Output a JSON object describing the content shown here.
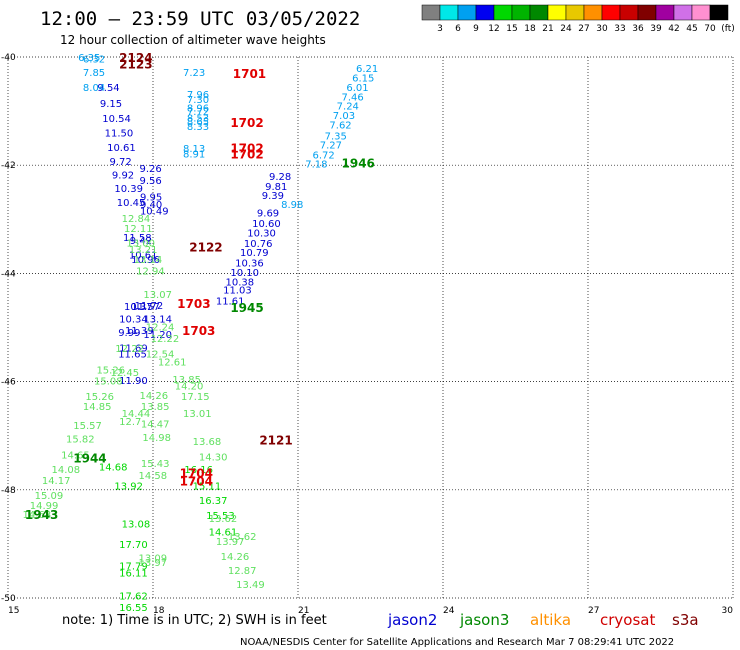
{
  "header": {
    "title": "12:00 – 23:59 UTC 03/05/2022",
    "subtitle": "12 hour collection of altimeter wave heights"
  },
  "colorbar": {
    "colors": [
      "#808080",
      "#00e8e8",
      "#00a0f0",
      "#0000f0",
      "#00d800",
      "#00b400",
      "#008800",
      "#ffff00",
      "#e8c800",
      "#ff9000",
      "#ff0000",
      "#c80000",
      "#800000",
      "#a000a0",
      "#d070e8",
      "#ff90d0",
      "#000000"
    ],
    "labels": [
      "3",
      "6",
      "9",
      "12",
      "15",
      "18",
      "21",
      "24",
      "27",
      "30",
      "33",
      "36",
      "39",
      "42",
      "45",
      "70",
      "(ft)"
    ]
  },
  "footer": {
    "note": "note: 1) Time is in UTC; 2) SWH is in feet",
    "credit": "NOAA/NESDIS Center for Satellite Applications and Research   Mar  7 08:29:41 UTC 2022",
    "satellites": [
      {
        "name": "jason2",
        "color": "#0000d0"
      },
      {
        "name": "jason3",
        "color": "#008800"
      },
      {
        "name": "altika",
        "color": "#ff9000"
      },
      {
        "name": "cryosat",
        "color": "#d00000"
      },
      {
        "name": "s3a",
        "color": "#800000"
      }
    ]
  },
  "chart_data": {
    "type": "scatter",
    "xlim": [
      15,
      30
    ],
    "ylim": [
      -50,
      -40
    ],
    "xticks": [
      "15",
      "18",
      "21",
      "24",
      "27",
      "30"
    ],
    "yticks": [
      "-40",
      "-42",
      "-44",
      "-46",
      "-48",
      "-50"
    ],
    "grid": true,
    "series": [
      {
        "color": "#0000d0",
        "points": [
          [
            16.85,
            -40.55,
            "9.54"
          ],
          [
            16.9,
            -40.85,
            "9.15"
          ],
          [
            16.95,
            -41.13,
            "10.54"
          ],
          [
            17.0,
            -41.4,
            "11.50"
          ],
          [
            17.05,
            -41.66,
            "10.61"
          ],
          [
            17.1,
            -41.92,
            "9.72"
          ],
          [
            17.15,
            -42.17,
            "9.92"
          ],
          [
            17.2,
            -42.42,
            "10.39"
          ],
          [
            17.25,
            -42.68,
            "10.45"
          ],
          [
            17.72,
            -42.05,
            "9.26"
          ],
          [
            17.72,
            -42.27,
            "9.56"
          ],
          [
            17.73,
            -42.58,
            "9.95"
          ],
          [
            17.73,
            -42.72,
            "9.40"
          ],
          [
            17.73,
            -42.84,
            "10.49"
          ],
          [
            17.38,
            -43.33,
            "11.58"
          ],
          [
            17.52,
            -43.38,
            "9.42"
          ],
          [
            17.5,
            -43.65,
            "10.61"
          ],
          [
            17.55,
            -43.73,
            "10.96"
          ],
          [
            17.4,
            -44.6,
            "10.37"
          ],
          [
            17.55,
            -44.6,
            "11.57"
          ],
          [
            17.62,
            -44.58,
            "11.72"
          ],
          [
            17.3,
            -44.83,
            "10.34"
          ],
          [
            17.8,
            -44.83,
            "13.14"
          ],
          [
            17.28,
            -45.08,
            "9.99"
          ],
          [
            17.42,
            -45.05,
            "11.39"
          ],
          [
            17.8,
            -45.12,
            "11.20"
          ],
          [
            17.3,
            -45.37,
            "11.69"
          ],
          [
            17.28,
            -45.48,
            "11.65"
          ],
          [
            17.3,
            -45.97,
            "11.90"
          ],
          [
            20.4,
            -42.2,
            "9.28"
          ],
          [
            20.32,
            -42.38,
            "9.81"
          ],
          [
            20.25,
            -42.55,
            "9.39"
          ],
          [
            20.15,
            -42.87,
            "9.69"
          ],
          [
            20.05,
            -43.07,
            "10.60"
          ],
          [
            19.95,
            -43.24,
            "10.30"
          ],
          [
            19.88,
            -43.44,
            "10.76"
          ],
          [
            19.8,
            -43.6,
            "10.79"
          ],
          [
            19.7,
            -43.8,
            "10.36"
          ],
          [
            19.6,
            -43.97,
            "10.10"
          ],
          [
            19.5,
            -44.15,
            "10.38"
          ],
          [
            19.45,
            -44.3,
            "11.03"
          ],
          [
            19.3,
            -44.5,
            "11.61"
          ]
        ]
      },
      {
        "color": "#00a0f0",
        "points": [
          [
            16.45,
            -40.0,
            "6.35"
          ],
          [
            16.55,
            -40.03,
            "6.32"
          ],
          [
            16.55,
            -40.28,
            "7.85"
          ],
          [
            16.55,
            -40.55,
            "8.04"
          ],
          [
            18.62,
            -40.28,
            "7.23"
          ],
          [
            18.7,
            -40.68,
            "7.96"
          ],
          [
            18.7,
            -40.78,
            "7.30"
          ],
          [
            18.7,
            -40.93,
            "8.96"
          ],
          [
            18.7,
            -41.0,
            "7.72"
          ],
          [
            18.7,
            -41.12,
            "8.53"
          ],
          [
            18.7,
            -41.18,
            "8.65"
          ],
          [
            18.7,
            -41.28,
            "8.33"
          ],
          [
            18.62,
            -41.68,
            "8.13"
          ],
          [
            18.62,
            -41.78,
            "8.91"
          ],
          [
            22.2,
            -40.2,
            "6.21"
          ],
          [
            22.12,
            -40.38,
            "6.15"
          ],
          [
            22.0,
            -40.55,
            "6.01"
          ],
          [
            21.9,
            -40.73,
            "7.46"
          ],
          [
            21.8,
            -40.9,
            "7.24"
          ],
          [
            21.72,
            -41.07,
            "7.03"
          ],
          [
            21.65,
            -41.25,
            "7.62"
          ],
          [
            21.55,
            -41.45,
            "7.35"
          ],
          [
            21.45,
            -41.62,
            "7.27"
          ],
          [
            21.3,
            -41.8,
            "6.72"
          ],
          [
            21.15,
            -41.97,
            "7.18"
          ],
          [
            20.65,
            -42.72,
            "8.98"
          ]
        ]
      },
      {
        "color": "#00d800",
        "points": [
          [
            17.2,
            -47.92,
            "13.92"
          ],
          [
            16.88,
            -47.57,
            "14.68"
          ],
          [
            17.35,
            -48.62,
            "13.08"
          ],
          [
            17.3,
            -49.0,
            "17.70"
          ],
          [
            17.3,
            -49.4,
            "17.79"
          ],
          [
            17.3,
            -49.53,
            "16.11"
          ],
          [
            17.3,
            -49.95,
            "17.62"
          ],
          [
            17.3,
            -50.17,
            "16.55"
          ],
          [
            18.65,
            -47.62,
            "16.16"
          ],
          [
            18.82,
            -47.92,
            "15.11"
          ],
          [
            18.95,
            -48.19,
            "16.37"
          ],
          [
            19.1,
            -48.47,
            "15.53"
          ],
          [
            19.15,
            -48.77,
            "14.61"
          ]
        ]
      },
      {
        "color": "#60e060",
        "points": [
          [
            15.55,
            -48.1,
            "15.09"
          ],
          [
            15.45,
            -48.28,
            "14.99"
          ],
          [
            15.3,
            -48.45,
            "14.68"
          ],
          [
            15.7,
            -47.82,
            "14.17"
          ],
          [
            15.9,
            -47.62,
            "14.08"
          ],
          [
            16.1,
            -47.35,
            "14.65"
          ],
          [
            16.2,
            -47.05,
            "15.82"
          ],
          [
            16.35,
            -46.8,
            "15.57"
          ],
          [
            16.55,
            -46.45,
            "14.85"
          ],
          [
            16.6,
            -46.27,
            "15.26"
          ],
          [
            16.78,
            -45.98,
            "15.08"
          ],
          [
            16.83,
            -45.78,
            "15.26"
          ],
          [
            17.35,
            -46.58,
            "14.44"
          ],
          [
            17.3,
            -46.73,
            "12.7"
          ],
          [
            17.12,
            -45.82,
            "12.45"
          ],
          [
            17.22,
            -45.38,
            "12.22"
          ],
          [
            17.72,
            -46.25,
            "14.26"
          ],
          [
            17.75,
            -46.45,
            "13.85"
          ],
          [
            17.75,
            -46.77,
            "14.47"
          ],
          [
            17.78,
            -47.02,
            "14.98"
          ],
          [
            17.75,
            -47.5,
            "15.43"
          ],
          [
            17.7,
            -47.73,
            "14.58"
          ],
          [
            17.7,
            -49.25,
            "13.09"
          ],
          [
            17.7,
            -49.33,
            "13.97"
          ],
          [
            17.35,
            -42.98,
            "12.84"
          ],
          [
            17.4,
            -43.16,
            "12.11"
          ],
          [
            17.45,
            -43.43,
            "13.00"
          ],
          [
            17.5,
            -43.55,
            "13.21"
          ],
          [
            17.6,
            -43.73,
            "13.14"
          ],
          [
            17.65,
            -43.95,
            "12.94"
          ],
          [
            17.8,
            -44.38,
            "13.07"
          ],
          [
            17.85,
            -44.98,
            "12.24"
          ],
          [
            17.95,
            -45.19,
            "12.22"
          ],
          [
            17.85,
            -45.48,
            "12.54"
          ],
          [
            18.1,
            -45.63,
            "12.61"
          ],
          [
            18.4,
            -45.95,
            "13.85"
          ],
          [
            18.45,
            -46.07,
            "14.20"
          ],
          [
            18.58,
            -46.27,
            "17.15"
          ],
          [
            18.62,
            -46.58,
            "13.01"
          ],
          [
            18.82,
            -47.1,
            "13.68"
          ],
          [
            18.95,
            -47.38,
            "14.30"
          ],
          [
            19.15,
            -48.52,
            "13.62"
          ],
          [
            19.3,
            -48.95,
            "13.97"
          ],
          [
            19.4,
            -49.22,
            "14.26"
          ],
          [
            19.55,
            -49.48,
            "12.87"
          ],
          [
            19.72,
            -49.74,
            "13.49"
          ],
          [
            19.55,
            -48.85,
            "13.62"
          ]
        ]
      }
    ],
    "time_labels": [
      {
        "text": "2124",
        "x": 17.3,
        "y": -40.0,
        "color": "#800000"
      },
      {
        "text": "2123",
        "x": 17.3,
        "y": -40.12,
        "color": "#800000"
      },
      {
        "text": "1701",
        "x": 19.65,
        "y": -40.3,
        "color": "#e00000"
      },
      {
        "text": "1702",
        "x": 19.6,
        "y": -41.2,
        "color": "#e00000"
      },
      {
        "text": "1702",
        "x": 19.6,
        "y": -41.67,
        "color": "#e00000"
      },
      {
        "text": "1702",
        "x": 19.6,
        "y": -41.78,
        "color": "#e00000"
      },
      {
        "text": "1946",
        "x": 21.9,
        "y": -41.95,
        "color": "#008800"
      },
      {
        "text": "2122",
        "x": 18.75,
        "y": -43.5,
        "color": "#800000"
      },
      {
        "text": "1703",
        "x": 18.5,
        "y": -44.55,
        "color": "#e00000"
      },
      {
        "text": "1945",
        "x": 19.6,
        "y": -44.62,
        "color": "#008800"
      },
      {
        "text": "1703",
        "x": 18.6,
        "y": -45.05,
        "color": "#e00000"
      },
      {
        "text": "2121",
        "x": 20.2,
        "y": -47.07,
        "color": "#800000"
      },
      {
        "text": "1944",
        "x": 16.35,
        "y": -47.4,
        "color": "#008800"
      },
      {
        "text": "1704",
        "x": 18.55,
        "y": -47.68,
        "color": "#e00000"
      },
      {
        "text": "1704",
        "x": 18.55,
        "y": -47.83,
        "color": "#e00000"
      },
      {
        "text": "1943",
        "x": 15.35,
        "y": -48.45,
        "color": "#008800"
      }
    ]
  }
}
